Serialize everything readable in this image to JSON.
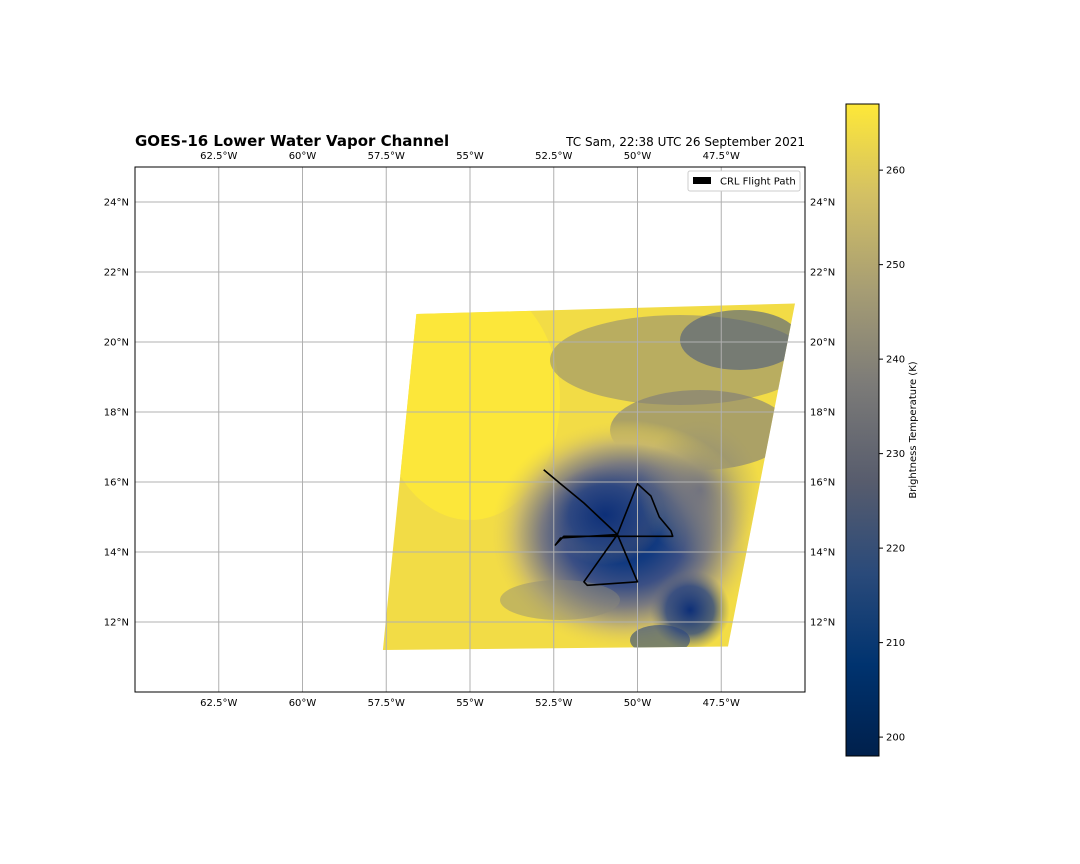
{
  "title": "GOES-16 Lower Water Vapor Channel",
  "subtitle": "TC Sam, 22:38 UTC 26 September 2021",
  "legend": {
    "label": "CRL Flight Path",
    "color": "#000000",
    "placement": "top-right"
  },
  "map": {
    "lon_range": [
      -65,
      -45
    ],
    "lat_range": [
      10,
      25
    ],
    "grid": true,
    "lon_ticks": [
      {
        "value": -62.5,
        "label": "62.5°W"
      },
      {
        "value": -60,
        "label": "60°W"
      },
      {
        "value": -57.5,
        "label": "57.5°W"
      },
      {
        "value": -55,
        "label": "55°W"
      },
      {
        "value": -52.5,
        "label": "52.5°W"
      },
      {
        "value": -50,
        "label": "50°W"
      },
      {
        "value": -47.5,
        "label": "47.5°W"
      }
    ],
    "lat_ticks": [
      {
        "value": 12,
        "label": "12°N"
      },
      {
        "value": 14,
        "label": "14°N"
      },
      {
        "value": 16,
        "label": "16°N"
      },
      {
        "value": 18,
        "label": "18°N"
      },
      {
        "value": 20,
        "label": "20°N"
      },
      {
        "value": 22,
        "label": "22°N"
      },
      {
        "value": 24,
        "label": "24°N"
      }
    ],
    "image_corners": [
      [
        -56.6,
        20.8
      ],
      [
        -45.3,
        21.1
      ],
      [
        -47.3,
        11.3
      ],
      [
        -57.6,
        11.2
      ]
    ],
    "storm_center": [
      -50.6,
      14.5
    ],
    "flight_path": [
      [
        -52.8,
        16.35
      ],
      [
        -52.3,
        15.95
      ],
      [
        -51.6,
        15.4
      ],
      [
        -50.6,
        14.5
      ],
      [
        -50.6,
        14.5
      ],
      [
        -50.0,
        15.95
      ],
      [
        -49.6,
        15.6
      ],
      [
        -49.35,
        15.0
      ],
      [
        -49.0,
        14.6
      ],
      [
        -48.95,
        14.45
      ],
      [
        -52.2,
        14.45
      ],
      [
        -52.45,
        14.2
      ],
      [
        -52.3,
        14.4
      ],
      [
        -50.6,
        14.5
      ],
      [
        -50.0,
        13.15
      ],
      [
        -51.5,
        13.05
      ],
      [
        -51.6,
        13.15
      ],
      [
        -50.6,
        14.5
      ]
    ]
  },
  "colorbar": {
    "label": "Brightness Temperature (K)",
    "range": [
      198,
      267
    ],
    "ticks": [
      200,
      210,
      220,
      230,
      240,
      250,
      260
    ],
    "colors": [
      "#00204c",
      "#00336f",
      "#2a4a7a",
      "#575c6d",
      "#7c7b78",
      "#a59c74",
      "#d3c064",
      "#fee838"
    ]
  }
}
